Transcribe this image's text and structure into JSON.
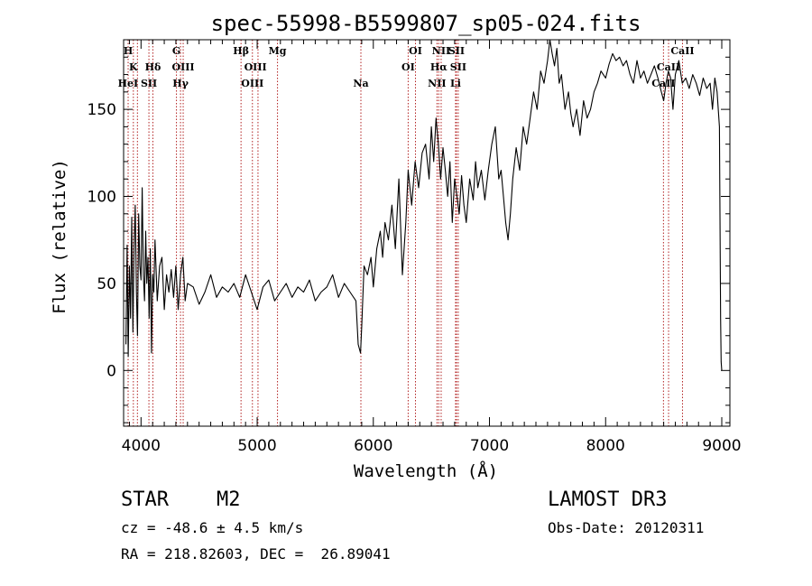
{
  "chart_data": {
    "type": "line",
    "title": "spec-55998-B5599807_sp05-024.fits",
    "xlabel": "Wavelength (Å)",
    "ylabel": "Flux (relative)",
    "xlim": [
      3850,
      9070
    ],
    "ylim": [
      -32,
      190
    ],
    "xticks": [
      4000,
      5000,
      6000,
      7000,
      8000,
      9000
    ],
    "yticks": [
      0,
      50,
      100,
      150
    ],
    "series": [
      {
        "name": "flux",
        "x": [
          3870,
          3880,
          3890,
          3900,
          3910,
          3920,
          3930,
          3940,
          3950,
          3960,
          3970,
          3980,
          3990,
          4000,
          4010,
          4020,
          4030,
          4040,
          4050,
          4060,
          4070,
          4080,
          4090,
          4100,
          4110,
          4120,
          4140,
          4160,
          4180,
          4200,
          4220,
          4240,
          4260,
          4280,
          4300,
          4320,
          4340,
          4360,
          4380,
          4400,
          4450,
          4500,
          4550,
          4600,
          4650,
          4700,
          4750,
          4800,
          4850,
          4900,
          4950,
          5000,
          5050,
          5100,
          5150,
          5200,
          5250,
          5300,
          5350,
          5400,
          5450,
          5500,
          5550,
          5600,
          5650,
          5700,
          5750,
          5800,
          5850,
          5870,
          5890,
          5900,
          5920,
          5950,
          5980,
          6000,
          6030,
          6060,
          6080,
          6100,
          6130,
          6160,
          6190,
          6220,
          6250,
          6280,
          6300,
          6330,
          6360,
          6390,
          6420,
          6450,
          6480,
          6500,
          6520,
          6540,
          6560,
          6580,
          6600,
          6620,
          6640,
          6660,
          6680,
          6700,
          6720,
          6740,
          6760,
          6780,
          6800,
          6830,
          6860,
          6880,
          6900,
          6930,
          6960,
          6990,
          7020,
          7050,
          7080,
          7100,
          7120,
          7140,
          7160,
          7180,
          7200,
          7230,
          7260,
          7290,
          7320,
          7350,
          7380,
          7410,
          7440,
          7470,
          7500,
          7520,
          7540,
          7560,
          7580,
          7600,
          7620,
          7650,
          7680,
          7700,
          7720,
          7750,
          7780,
          7810,
          7840,
          7870,
          7900,
          7930,
          7960,
          8000,
          8030,
          8060,
          8090,
          8120,
          8150,
          8180,
          8210,
          8240,
          8270,
          8300,
          8330,
          8360,
          8390,
          8420,
          8450,
          8480,
          8500,
          8520,
          8540,
          8560,
          8580,
          8600,
          8630,
          8660,
          8690,
          8720,
          8750,
          8780,
          8810,
          8840,
          8870,
          8900,
          8920,
          8940,
          8960,
          8980,
          8990,
          8995,
          9000
        ],
        "y": [
          15,
          72,
          8,
          60,
          30,
          88,
          22,
          70,
          95,
          45,
          20,
          90,
          60,
          52,
          105,
          55,
          40,
          80,
          50,
          65,
          30,
          70,
          10,
          55,
          45,
          75,
          40,
          60,
          65,
          35,
          55,
          45,
          58,
          42,
          60,
          35,
          55,
          65,
          40,
          50,
          48,
          38,
          45,
          55,
          42,
          48,
          45,
          50,
          42,
          55,
          45,
          35,
          48,
          52,
          40,
          45,
          50,
          42,
          48,
          45,
          52,
          40,
          45,
          48,
          55,
          42,
          50,
          45,
          40,
          15,
          10,
          25,
          60,
          55,
          65,
          48,
          70,
          80,
          65,
          85,
          75,
          95,
          70,
          110,
          55,
          85,
          115,
          95,
          120,
          105,
          125,
          130,
          110,
          140,
          120,
          145,
          130,
          110,
          128,
          115,
          100,
          120,
          85,
          110,
          100,
          90,
          112,
          95,
          85,
          110,
          98,
          120,
          105,
          115,
          98,
          115,
          130,
          140,
          110,
          115,
          100,
          85,
          75,
          90,
          110,
          128,
          115,
          140,
          130,
          145,
          160,
          150,
          172,
          165,
          178,
          190,
          182,
          175,
          185,
          165,
          170,
          150,
          160,
          148,
          140,
          150,
          135,
          155,
          145,
          150,
          160,
          165,
          172,
          168,
          176,
          182,
          178,
          180,
          175,
          178,
          170,
          165,
          178,
          168,
          172,
          165,
          170,
          175,
          168,
          160,
          155,
          165,
          172,
          168,
          150,
          170,
          178,
          165,
          168,
          162,
          170,
          165,
          158,
          168,
          162,
          165,
          150,
          168,
          160,
          140,
          30,
          5,
          0
        ]
      }
    ],
    "annotations": [
      {
        "label": "H",
        "x": 3889,
        "row": 0
      },
      {
        "label": "K",
        "x": 3934,
        "row": 1
      },
      {
        "label": "HeI",
        "x": 3888,
        "row": 2
      },
      {
        "label": "SII",
        "x": 4068,
        "row": 2
      },
      {
        "label": "Hδ",
        "x": 4102,
        "row": 1
      },
      {
        "label": "G",
        "x": 4305,
        "row": 0
      },
      {
        "label": "OIII",
        "x": 4363,
        "row": 1
      },
      {
        "label": "Hγ",
        "x": 4340,
        "row": 2
      },
      {
        "label": "Hβ",
        "x": 4861,
        "row": 0
      },
      {
        "label": "OIII",
        "x": 4985,
        "row": 1
      },
      {
        "label": "OIII",
        "x": 4959,
        "row": 2
      },
      {
        "label": "Mg",
        "x": 5175,
        "row": 0
      },
      {
        "label": "Na",
        "x": 5893,
        "row": 2
      },
      {
        "label": "OI",
        "x": 6363,
        "row": 0
      },
      {
        "label": "OI",
        "x": 6300,
        "row": 1
      },
      {
        "label": "NII",
        "x": 6584,
        "row": 0
      },
      {
        "label": "SII",
        "x": 6716,
        "row": 0
      },
      {
        "label": "Hα",
        "x": 6563,
        "row": 1
      },
      {
        "label": "SII",
        "x": 6731,
        "row": 1
      },
      {
        "label": "NII",
        "x": 6548,
        "row": 2
      },
      {
        "label": "Li",
        "x": 6708,
        "row": 2
      },
      {
        "label": "CaII",
        "x": 8662,
        "row": 0
      },
      {
        "label": "CaII",
        "x": 8542,
        "row": 1
      },
      {
        "label": "CaII",
        "x": 8498,
        "row": 2
      }
    ],
    "line_marks": [
      3889,
      3934,
      3969,
      4068,
      4102,
      4305,
      4340,
      4363,
      4861,
      4959,
      5007,
      5175,
      5893,
      6300,
      6363,
      6548,
      6563,
      6584,
      6708,
      6716,
      6731,
      8498,
      8542,
      8662
    ]
  },
  "info": {
    "class": "STAR",
    "subclass": "M2",
    "survey": "LAMOST DR3",
    "cz": "cz = -48.6 ± 4.5 km/s",
    "obs_date": "Obs-Date: 20120311",
    "coords": "RA = 218.82603, DEC =  26.89041"
  },
  "colors": {
    "line": "#000000",
    "marker": "#b22222",
    "background": "#ffffff"
  }
}
